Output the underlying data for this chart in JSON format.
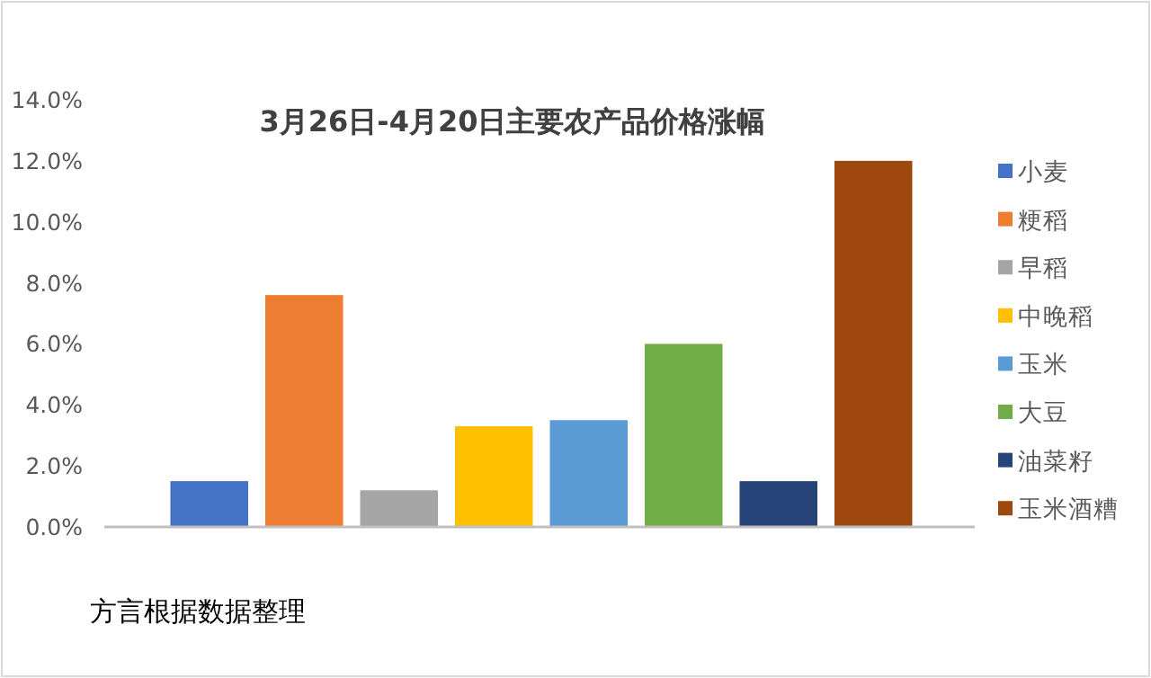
{
  "chart_data": {
    "type": "bar",
    "title": "3月26日-4月20日主要农产品价格涨幅",
    "categories": [
      null,
      null,
      null,
      null,
      null,
      null,
      null,
      null
    ],
    "series": [
      {
        "name": "小麦",
        "color": "#4472c4",
        "values": [
          1.5,
          null,
          null,
          null,
          null,
          null,
          null,
          null
        ]
      },
      {
        "name": "粳稻",
        "color": "#ed7d31",
        "values": [
          null,
          7.6,
          null,
          null,
          null,
          null,
          null,
          null
        ]
      },
      {
        "name": "早稻",
        "color": "#a5a5a5",
        "values": [
          null,
          null,
          1.2,
          null,
          null,
          null,
          null,
          null
        ]
      },
      {
        "name": "中晚稻",
        "color": "#ffc000",
        "values": [
          null,
          null,
          null,
          3.3,
          null,
          null,
          null,
          null
        ]
      },
      {
        "name": "玉米",
        "color": "#5b9bd5",
        "values": [
          null,
          null,
          null,
          null,
          3.5,
          null,
          null,
          null
        ]
      },
      {
        "name": "大豆",
        "color": "#70ad47",
        "values": [
          null,
          null,
          null,
          null,
          null,
          6.0,
          null,
          null
        ]
      },
      {
        "name": "油菜籽",
        "color": "#264478",
        "values": [
          null,
          null,
          null,
          null,
          null,
          null,
          1.5,
          null
        ]
      },
      {
        "name": "玉米酒糟",
        "color": "#9e480e",
        "values": [
          null,
          null,
          null,
          null,
          null,
          null,
          null,
          12.0
        ]
      }
    ],
    "ylim": [
      0,
      14
    ],
    "yticks": [
      {
        "value": 0,
        "label": "0.0%"
      },
      {
        "value": 2,
        "label": "2.0%"
      },
      {
        "value": 4,
        "label": "4.0%"
      },
      {
        "value": 6,
        "label": "6.0%"
      },
      {
        "value": 8,
        "label": "8.0%"
      },
      {
        "value": 10,
        "label": "10.0%"
      },
      {
        "value": 12,
        "label": "12.0%"
      },
      {
        "value": 14,
        "label": "14.0%"
      }
    ],
    "tick_labels": "y",
    "legend": "right",
    "annotations": [
      "方言根据数据整理"
    ]
  }
}
